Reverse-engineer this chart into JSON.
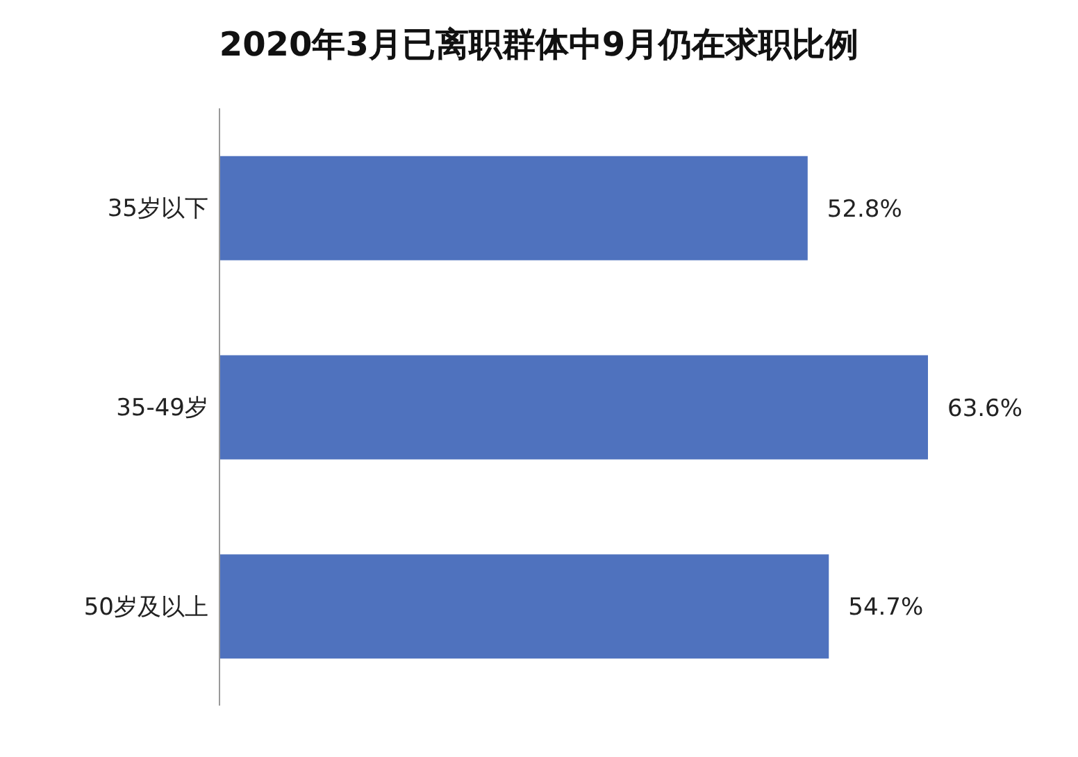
{
  "chart_data": {
    "type": "bar",
    "orientation": "horizontal",
    "title": "2020年3月已离职群体中9月仍在求职比例",
    "categories": [
      "35岁以下",
      "35-49岁",
      "50岁及以上"
    ],
    "values": [
      52.8,
      63.6,
      54.7
    ],
    "color": "#4f72be",
    "value_labels": [
      "52.8%",
      "63.6%",
      "54.7%"
    ]
  }
}
